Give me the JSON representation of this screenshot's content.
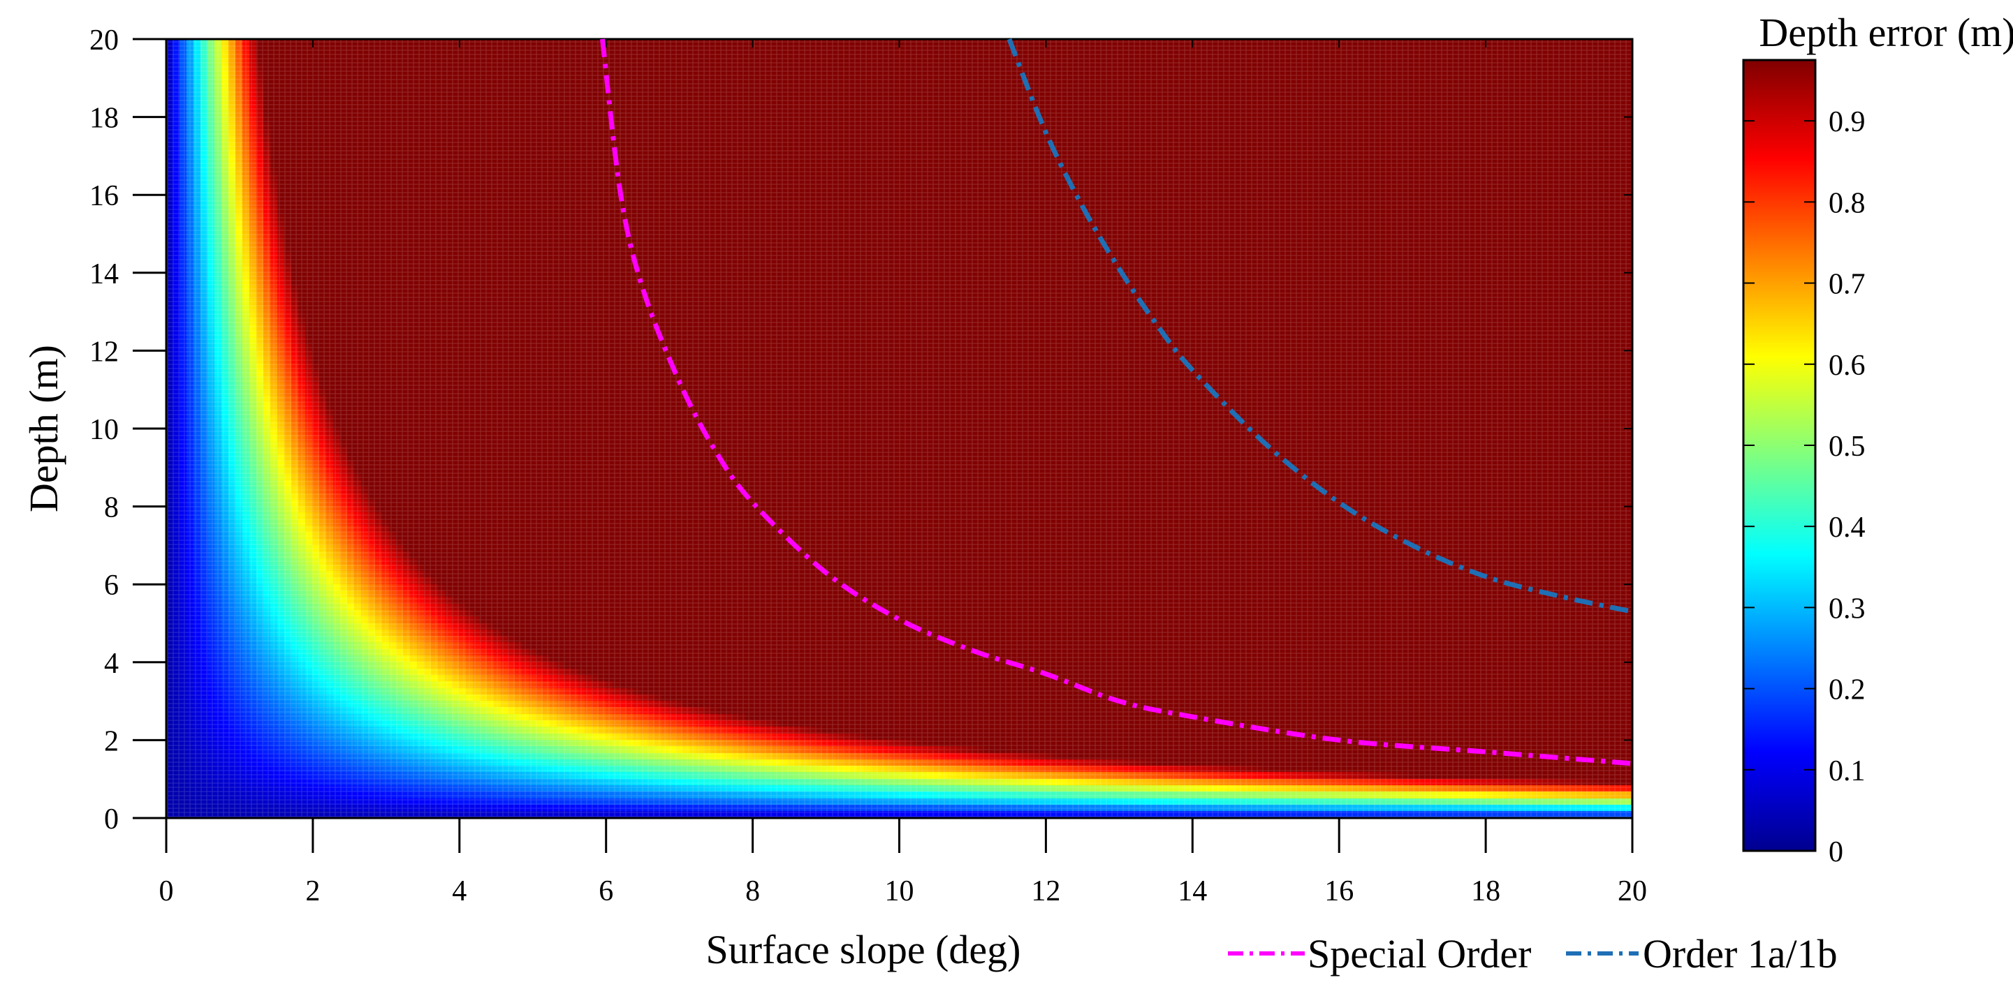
{
  "chart_data": {
    "type": "heatmap",
    "title": "",
    "xlabel": "Surface slope (deg)",
    "ylabel": "Depth (m)",
    "xlim": [
      0,
      20
    ],
    "ylim": [
      0,
      20
    ],
    "xticks": [
      "0",
      "2",
      "4",
      "6",
      "8",
      "10",
      "12",
      "14",
      "16",
      "18",
      "20"
    ],
    "yticks": [
      "0",
      "2",
      "4",
      "6",
      "8",
      "10",
      "12",
      "14",
      "16",
      "18",
      "20"
    ],
    "heatmap": {
      "description_formula": "depth_error ≈ 0.0488 * depth * slope (approx., grows with both depth and slope)",
      "x_range": [
        0,
        20
      ],
      "y_range": [
        0,
        20
      ],
      "value_range": [
        0,
        0.975
      ]
    },
    "colorbar": {
      "title": "Depth error (m)",
      "colormap": "jet",
      "range": [
        0,
        0.975
      ],
      "ticks": [
        "0",
        "0.1",
        "0.2",
        "0.3",
        "0.4",
        "0.5",
        "0.6",
        "0.7",
        "0.8",
        "0.9"
      ]
    },
    "series": [
      {
        "name": "Special Order",
        "color": "#ff00ff",
        "style": "dash-dot",
        "x": [
          5.95,
          6.2,
          6.5,
          7.0,
          7.5,
          8.0,
          9.0,
          10.0,
          11.0,
          12.0,
          13.0,
          14.0,
          16.0,
          18.0,
          20.0
        ],
        "y": [
          20.0,
          16.0,
          13.6,
          11.2,
          9.4,
          8.1,
          6.3,
          5.1,
          4.3,
          3.7,
          3.0,
          2.6,
          2.0,
          1.7,
          1.4
        ]
      },
      {
        "name": "Order 1a/1b",
        "color": "#1f6fb5",
        "style": "dash-dot",
        "x": [
          11.5,
          12.0,
          12.5,
          13.0,
          13.5,
          14.0,
          15.0,
          16.0,
          17.0,
          18.0,
          19.0,
          20.0
        ],
        "y": [
          20.0,
          17.6,
          15.7,
          14.1,
          12.7,
          11.5,
          9.6,
          8.1,
          7.0,
          6.2,
          5.7,
          5.3
        ]
      }
    ],
    "legend": {
      "position": "bottom-right",
      "entries": [
        "Special Order",
        "Order 1a/1b"
      ]
    }
  }
}
